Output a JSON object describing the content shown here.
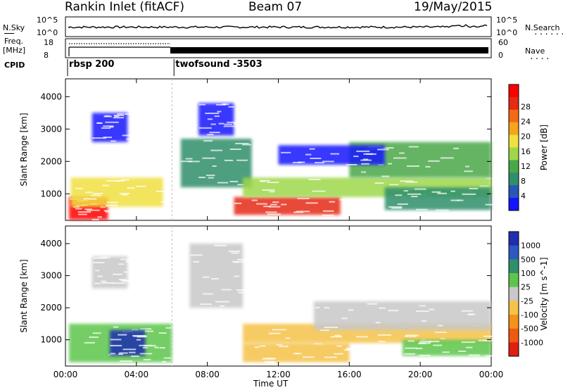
{
  "header": {
    "station": "Rankin Inlet (fitACF)",
    "beam": "Beam 07",
    "date": "19/May/2015"
  },
  "strip_labels": {
    "nsky": "N.Sky",
    "nsky_ticks": [
      "10^5",
      "10^0"
    ],
    "nsearch": "N.Search",
    "nsearch_ticks": [
      "10^5",
      "10^0"
    ],
    "freq_title": "Freq.",
    "freq_unit": "[MHz]",
    "freq_ticks": [
      "18",
      "8"
    ],
    "nave": "Nave",
    "nave_ticks": [
      "60",
      "0"
    ],
    "cpid": "CPID"
  },
  "cpid_segments": [
    {
      "label": "rbsp 200",
      "start_hour": 0,
      "end_hour": 6
    },
    {
      "label": "twofsound -3503",
      "start_hour": 6,
      "end_hour": 24
    }
  ],
  "x_axis": {
    "title": "Time UT",
    "ticks": [
      "00:00",
      "04:00",
      "08:00",
      "12:00",
      "16:00",
      "20:00",
      "00:00"
    ],
    "tick_hours": [
      0,
      4,
      8,
      12,
      16,
      20,
      24
    ],
    "range_hours": [
      0,
      24
    ]
  },
  "panel_y": {
    "title": "Slant Range [km]",
    "ticks": [
      "1000",
      "2000",
      "3000",
      "4000"
    ],
    "tick_values": [
      1000,
      2000,
      3000,
      4000
    ],
    "range_km": [
      180,
      4550
    ]
  },
  "power_bar": {
    "title": "Power [dB]",
    "ticks": [
      "4",
      "8",
      "12",
      "16",
      "20",
      "24",
      "28"
    ],
    "colors": [
      "#1414ff",
      "#2a55b8",
      "#2f8f6a",
      "#48a848",
      "#9ed84a",
      "#f0e040",
      "#f7a41d",
      "#f46a12",
      "#e62a14",
      "#ff0000"
    ]
  },
  "velocity_bar": {
    "title": "Velocity [m s^-1]",
    "ticks": [
      "1000",
      "500",
      "100",
      "25",
      "-25",
      "-100",
      "-500",
      "-1000"
    ],
    "colors": [
      "#1f2fb0",
      "#2f59c2",
      "#2f8f6a",
      "#5cc64c",
      "#c8c8c8",
      "#f5c24a",
      "#f4921a",
      "#f05a10",
      "#e02010"
    ]
  },
  "chart_data": [
    {
      "type": "heatmap",
      "title": "Power",
      "xlabel": "Time UT",
      "ylabel": "Slant Range [km]",
      "colorbar": "Power [dB]",
      "xlim": [
        0,
        24
      ],
      "ylim": [
        180,
        4550
      ],
      "regions": [
        {
          "t": [
            0.2,
            2.4
          ],
          "r": [
            200,
            900
          ],
          "v": 28
        },
        {
          "t": [
            0.3,
            5.5
          ],
          "r": [
            600,
            1500
          ],
          "v": 16
        },
        {
          "t": [
            1.5,
            3.5
          ],
          "r": [
            2600,
            3500
          ],
          "v": 6
        },
        {
          "t": [
            6.5,
            10.5
          ],
          "r": [
            1200,
            2700
          ],
          "v": 10
        },
        {
          "t": [
            7.5,
            9.5
          ],
          "r": [
            2800,
            3800
          ],
          "v": 5
        },
        {
          "t": [
            9.5,
            15.5
          ],
          "r": [
            350,
            900
          ],
          "v": 24
        },
        {
          "t": [
            10,
            24
          ],
          "r": [
            900,
            1500
          ],
          "v": 14
        },
        {
          "t": [
            16,
            24
          ],
          "r": [
            1500,
            2600
          ],
          "v": 13
        },
        {
          "t": [
            12,
            18
          ],
          "r": [
            1900,
            2500
          ],
          "v": 6
        },
        {
          "t": [
            18,
            24
          ],
          "r": [
            500,
            1200
          ],
          "v": 10
        }
      ]
    },
    {
      "type": "heatmap",
      "title": "Velocity",
      "xlabel": "Time UT",
      "ylabel": "Slant Range [km]",
      "colorbar": "Velocity [m s^-1]",
      "xlim": [
        0,
        24
      ],
      "ylim": [
        180,
        4550
      ],
      "regions": [
        {
          "t": [
            0.2,
            6
          ],
          "r": [
            300,
            1500
          ],
          "v": 300
        },
        {
          "t": [
            2.5,
            4.5
          ],
          "r": [
            500,
            1300
          ],
          "v": 800
        },
        {
          "t": [
            1.5,
            3.5
          ],
          "r": [
            2600,
            3600
          ],
          "v": 10
        },
        {
          "t": [
            7,
            10
          ],
          "r": [
            2000,
            4000
          ],
          "v": 0
        },
        {
          "t": [
            10,
            16
          ],
          "r": [
            300,
            900
          ],
          "v": -200
        },
        {
          "t": [
            10,
            24
          ],
          "r": [
            900,
            1500
          ],
          "v": -150
        },
        {
          "t": [
            14,
            24
          ],
          "r": [
            1300,
            2200
          ],
          "v": 0
        },
        {
          "t": [
            19,
            24
          ],
          "r": [
            500,
            1000
          ],
          "v": 150
        }
      ]
    }
  ]
}
